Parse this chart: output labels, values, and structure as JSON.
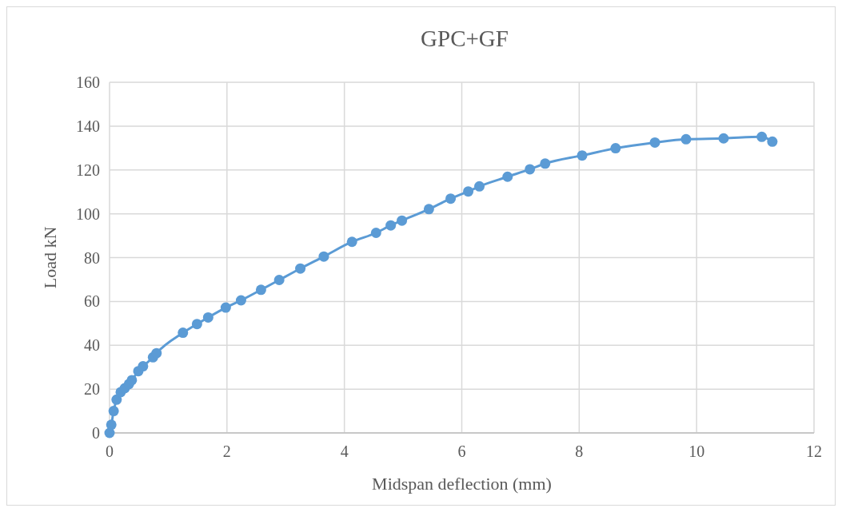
{
  "chart_data": {
    "type": "line",
    "title": "GPC+GF",
    "xlabel": "Midspan deflection (mm)",
    "ylabel": "Load kN",
    "series": [
      {
        "color": "#5b9bd5",
        "x": [
          0,
          0.03,
          0.07,
          0.12,
          0.19,
          0.26,
          0.33,
          0.38,
          0.49,
          0.57,
          0.74,
          0.8,
          1.25,
          1.49,
          1.68,
          1.98,
          2.24,
          2.58,
          2.89,
          3.25,
          3.65,
          4.13,
          4.54,
          4.79,
          4.98,
          5.44,
          5.81,
          6.11,
          6.3,
          6.78,
          7.16,
          7.42,
          8.05,
          8.62,
          9.29,
          9.82,
          10.46,
          11.11,
          11.29
        ],
        "values": [
          0,
          3.7,
          10,
          15.2,
          18.6,
          20.4,
          22.3,
          24.1,
          28.2,
          30.4,
          34.5,
          36.4,
          45.7,
          49.7,
          52.7,
          57.2,
          60.5,
          65.3,
          69.8,
          75,
          80.5,
          87.2,
          91.3,
          94.7,
          96.9,
          102.1,
          106.9,
          110.2,
          112.5,
          116.9,
          120.3,
          122.9,
          126.6,
          129.9,
          132.5,
          134,
          134.4,
          135.1,
          132.9
        ]
      }
    ],
    "xlim": [
      0,
      12
    ],
    "xticks": [
      0,
      2,
      4,
      6,
      8,
      10,
      12
    ],
    "ylim": [
      0,
      160
    ],
    "yticks": [
      0,
      20,
      40,
      60,
      80,
      100,
      120,
      140,
      160
    ],
    "grid": true,
    "marker": "circle",
    "line_style": "solid"
  }
}
